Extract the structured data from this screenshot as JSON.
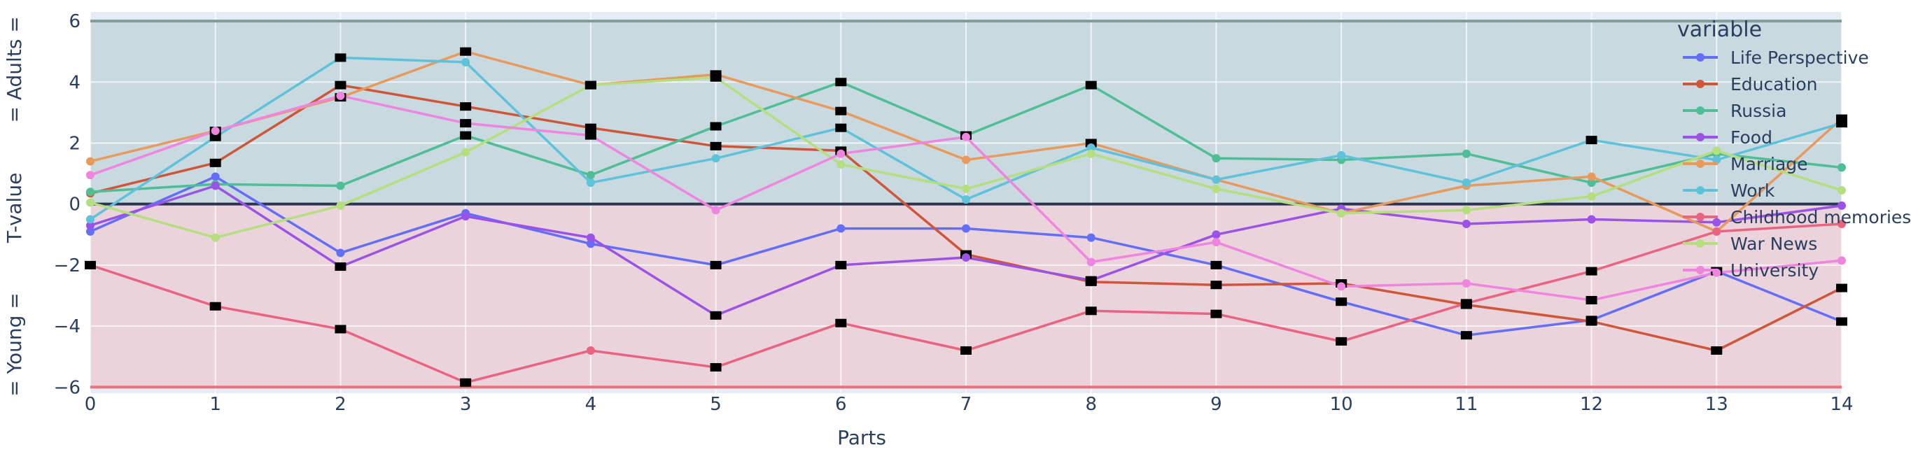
{
  "chart_data": {
    "type": "line",
    "title": "",
    "xlabel": "Parts",
    "ylabel": "= Young =        T-value        = Adults =",
    "x": [
      0,
      1,
      2,
      3,
      4,
      5,
      6,
      7,
      8,
      9,
      10,
      11,
      12,
      13,
      14
    ],
    "xlim": [
      0,
      14
    ],
    "ylim": [
      -6.2,
      6.3
    ],
    "yticks": [
      -6,
      -4,
      -2,
      0,
      2,
      4,
      6
    ],
    "grid": true,
    "legend": {
      "title": "variable",
      "placement": "right"
    },
    "bands": [
      {
        "from": 0,
        "to": 6,
        "color": "#c9d9e0"
      },
      {
        "from": -6,
        "to": 0,
        "color": "#ead3da"
      }
    ],
    "reference_lines": [
      {
        "y": 6,
        "color": "#7f9c98"
      },
      {
        "y": 0,
        "color": "#2b3552"
      },
      {
        "y": -6,
        "color": "#ef6f7b"
      }
    ],
    "series": [
      {
        "name": "Life Perspective",
        "color": "#636efa",
        "values": [
          -0.9,
          0.9,
          -1.6,
          -0.3,
          -1.3,
          -2.0,
          -0.8,
          -0.8,
          -1.1,
          -2.0,
          -3.2,
          -4.3,
          -3.8,
          -2.2,
          -3.85
        ],
        "markers": [
          false,
          false,
          false,
          false,
          false,
          true,
          false,
          false,
          false,
          true,
          true,
          true,
          true,
          true,
          true
        ]
      },
      {
        "name": "Education",
        "color": "#d0563a",
        "values": [
          0.35,
          1.35,
          3.9,
          3.2,
          2.5,
          1.9,
          1.75,
          -1.65,
          -2.55,
          -2.65,
          -2.6,
          -3.3,
          -3.85,
          -4.8,
          -2.75
        ],
        "markers": [
          false,
          true,
          true,
          true,
          true,
          true,
          true,
          true,
          true,
          true,
          true,
          true,
          true,
          true,
          true
        ]
      },
      {
        "name": "Russia",
        "color": "#4ebe96",
        "values": [
          0.4,
          0.65,
          0.6,
          2.25,
          0.95,
          2.55,
          4.0,
          2.25,
          3.9,
          1.5,
          1.45,
          1.65,
          0.7,
          1.65,
          1.2
        ],
        "markers": [
          false,
          false,
          false,
          true,
          false,
          true,
          true,
          true,
          true,
          false,
          false,
          false,
          false,
          false,
          false
        ]
      },
      {
        "name": "Food",
        "color": "#9b52e6",
        "values": [
          -0.7,
          0.6,
          -2.05,
          -0.4,
          -1.1,
          -3.65,
          -2.0,
          -1.75,
          -2.5,
          -1.0,
          -0.15,
          -0.65,
          -0.5,
          -0.6,
          -0.05
        ],
        "markers": [
          false,
          false,
          true,
          false,
          false,
          true,
          true,
          false,
          true,
          false,
          false,
          false,
          false,
          false,
          false
        ]
      },
      {
        "name": "Marriage",
        "color": "#e89a5d",
        "values": [
          1.4,
          2.4,
          3.5,
          5.0,
          3.9,
          4.25,
          3.05,
          1.45,
          2.0,
          0.8,
          -0.3,
          0.6,
          0.9,
          -0.9,
          2.8
        ],
        "markers": [
          false,
          true,
          true,
          true,
          true,
          true,
          true,
          false,
          true,
          false,
          false,
          false,
          false,
          false,
          true
        ]
      },
      {
        "name": "Work",
        "color": "#5ec2db",
        "values": [
          -0.5,
          2.2,
          4.8,
          4.65,
          0.7,
          1.5,
          2.5,
          0.15,
          1.85,
          0.8,
          1.6,
          0.7,
          2.1,
          1.45,
          2.65
        ],
        "markers": [
          false,
          true,
          true,
          false,
          false,
          false,
          true,
          false,
          false,
          false,
          false,
          false,
          true,
          false,
          true
        ]
      },
      {
        "name": "Childhood memories",
        "color": "#ea6380",
        "values": [
          -2.0,
          -3.35,
          -4.1,
          -5.85,
          -4.8,
          -5.35,
          -3.9,
          -4.8,
          -3.5,
          -3.6,
          -4.5,
          -3.25,
          -2.2,
          -0.9,
          -0.65
        ],
        "markers": [
          true,
          true,
          true,
          true,
          false,
          true,
          true,
          true,
          true,
          true,
          true,
          true,
          true,
          false,
          false
        ]
      },
      {
        "name": "War News",
        "color": "#b5df7e",
        "values": [
          0.05,
          -1.1,
          -0.05,
          1.7,
          3.9,
          4.15,
          1.3,
          0.5,
          1.65,
          0.5,
          -0.3,
          -0.2,
          0.25,
          1.75,
          0.45
        ],
        "markers": [
          false,
          false,
          false,
          false,
          true,
          true,
          false,
          false,
          false,
          false,
          false,
          false,
          false,
          false,
          false
        ]
      },
      {
        "name": "University",
        "color": "#ef85e0",
        "values": [
          0.95,
          2.4,
          3.55,
          2.65,
          2.25,
          -0.2,
          1.65,
          2.2,
          -1.9,
          -1.25,
          -2.7,
          -2.6,
          -3.15,
          -2.25,
          -1.85
        ],
        "markers": [
          false,
          false,
          false,
          true,
          true,
          false,
          false,
          false,
          false,
          false,
          false,
          false,
          true,
          false,
          false
        ]
      }
    ]
  }
}
